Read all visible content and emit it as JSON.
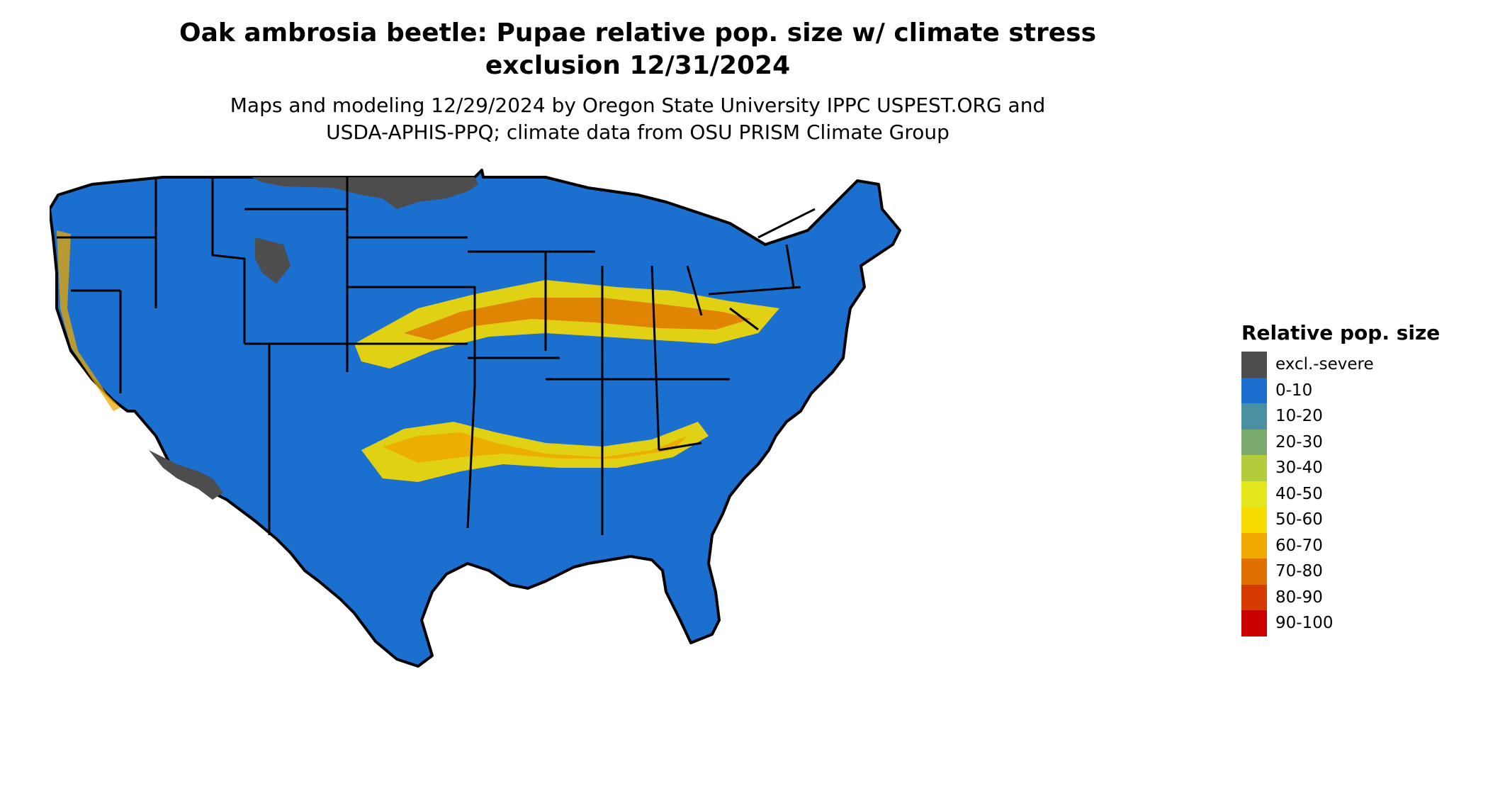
{
  "title": {
    "line1": "Oak ambrosia beetle: Pupae relative pop. size w/ climate stress",
    "line2": "exclusion 12/31/2024"
  },
  "subtitle": {
    "line1": "Maps and modeling 12/29/2024 by Oregon State University IPPC USPEST.ORG and",
    "line2": "USDA-APHIS-PPQ; climate data from OSU PRISM Climate Group"
  },
  "legend": {
    "title": "Relative pop. size",
    "items": [
      {
        "label": "excl.-severe",
        "color": "#4d4d4d"
      },
      {
        "label": "0-10",
        "color": "#1b6fcf"
      },
      {
        "label": "10-20",
        "color": "#4b8fa3"
      },
      {
        "label": "20-30",
        "color": "#7aab6d"
      },
      {
        "label": "30-40",
        "color": "#b3cc3c"
      },
      {
        "label": "40-50",
        "color": "#e3e61a"
      },
      {
        "label": "50-60",
        "color": "#f7dc00"
      },
      {
        "label": "60-70",
        "color": "#eea800"
      },
      {
        "label": "70-80",
        "color": "#e07000"
      },
      {
        "label": "80-90",
        "color": "#d63a00"
      },
      {
        "label": "90-100",
        "color": "#cc0000"
      }
    ]
  },
  "map": {
    "region": "Contiguous United States",
    "colors": {
      "border": "#000000"
    }
  }
}
